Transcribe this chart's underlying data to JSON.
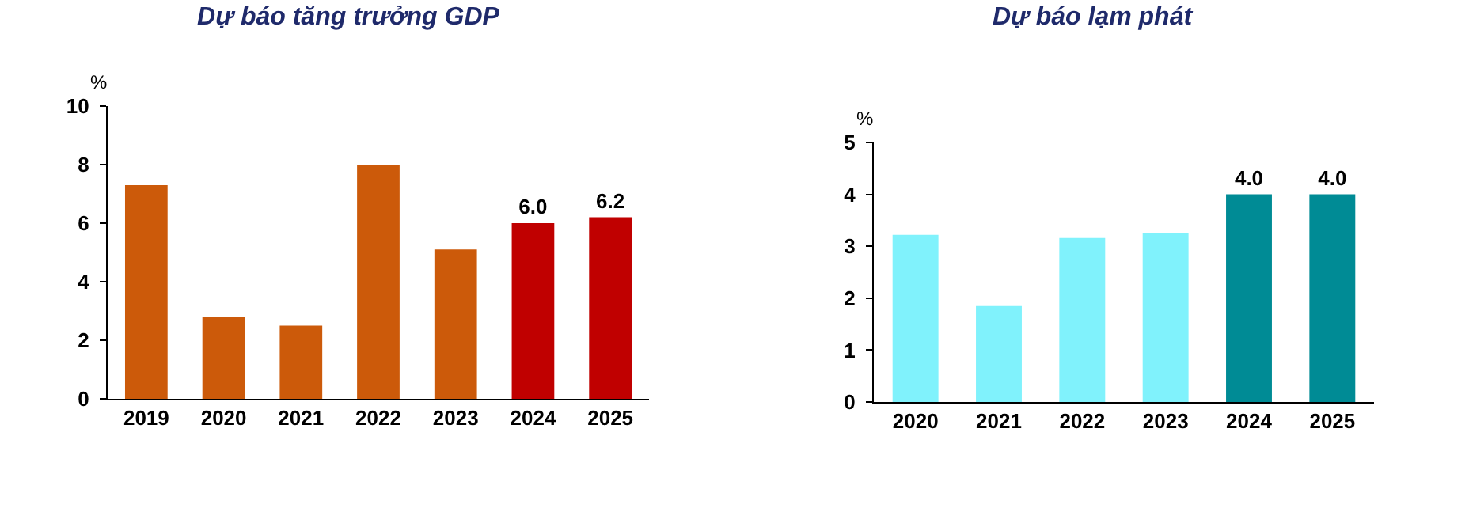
{
  "chart_data": [
    {
      "type": "bar",
      "title": "Dự báo tăng trưởng GDP",
      "ylabel": "%",
      "categories": [
        "2019",
        "2020",
        "2021",
        "2022",
        "2023",
        "2024",
        "2025"
      ],
      "values": [
        7.3,
        2.8,
        2.5,
        8.0,
        5.1,
        6.0,
        6.2
      ],
      "colors": [
        "#cc5a0a",
        "#cc5a0a",
        "#cc5a0a",
        "#cc5a0a",
        "#cc5a0a",
        "#c00000",
        "#c00000"
      ],
      "value_labels": [
        null,
        null,
        null,
        null,
        null,
        "6.0",
        "6.2"
      ],
      "ylim": [
        0,
        10
      ],
      "yticks": [
        0,
        2,
        4,
        6,
        8,
        10
      ],
      "grid": false
    },
    {
      "type": "bar",
      "title": "Dự báo lạm phát",
      "ylabel": "%",
      "categories": [
        "2020",
        "2021",
        "2022",
        "2023",
        "2024",
        "2025"
      ],
      "values": [
        3.22,
        1.85,
        3.16,
        3.25,
        4.0,
        4.0
      ],
      "colors": [
        "#80f2fc",
        "#80f2fc",
        "#80f2fc",
        "#80f2fc",
        "#008b95",
        "#008b95"
      ],
      "value_labels": [
        null,
        null,
        null,
        null,
        "4.0",
        "4.0"
      ],
      "ylim": [
        0,
        5
      ],
      "yticks": [
        0,
        1,
        2,
        3,
        4,
        5
      ],
      "grid": false
    }
  ]
}
